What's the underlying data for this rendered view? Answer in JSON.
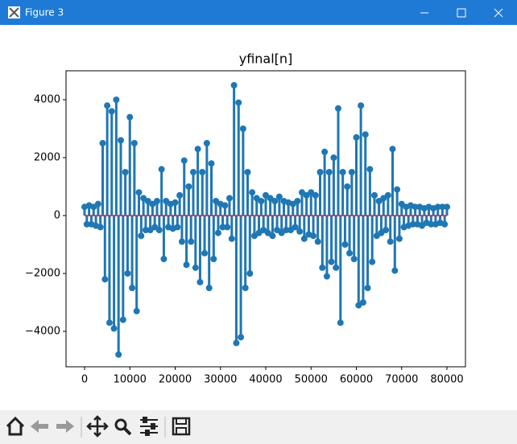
{
  "window": {
    "title": "Figure 3"
  },
  "chart_data": {
    "type": "stem",
    "title": "yfinal[n]",
    "color": "#1f77b4",
    "baseline_color": "#d62728",
    "xlim": [
      -4089,
      84089
    ],
    "ylim": [
      -5222,
      5000
    ],
    "xticks": [
      0,
      10000,
      20000,
      30000,
      40000,
      50000,
      60000,
      70000,
      80000
    ],
    "yticks": [
      {
        "value": -4000,
        "label": "−4000"
      },
      {
        "value": -2000,
        "label": "−2000"
      },
      0,
      2000,
      4000
    ],
    "x": [
      0,
      500,
      1000,
      1500,
      2000,
      2500,
      3000,
      3500,
      4000,
      4500,
      5000,
      5500,
      6000,
      6500,
      7000,
      7500,
      8000,
      8500,
      9000,
      9500,
      10000,
      10500,
      11000,
      11500,
      12000,
      12500,
      13000,
      13500,
      14000,
      14500,
      15000,
      15500,
      16000,
      16500,
      17000,
      17500,
      18000,
      18500,
      19000,
      19500,
      20000,
      20500,
      21000,
      21500,
      22000,
      22500,
      23000,
      23500,
      24000,
      24500,
      25000,
      25500,
      26000,
      26500,
      27000,
      27500,
      28000,
      28500,
      29000,
      29500,
      30000,
      30500,
      31000,
      31500,
      32000,
      32500,
      33000,
      33500,
      34000,
      34500,
      35000,
      35500,
      36000,
      36500,
      37000,
      37500,
      38000,
      38500,
      39000,
      39500,
      40000,
      40500,
      41000,
      41500,
      42000,
      42500,
      43000,
      43500,
      44000,
      44500,
      45000,
      45500,
      46000,
      46500,
      47000,
      47500,
      48000,
      48500,
      49000,
      49500,
      50000,
      50500,
      51000,
      51500,
      52000,
      52500,
      53000,
      53500,
      54000,
      54500,
      55000,
      55500,
      56000,
      56500,
      57000,
      57500,
      58000,
      58500,
      59000,
      59500,
      60000,
      60500,
      61000,
      61500,
      62000,
      62500,
      63000,
      63500,
      64000,
      64500,
      65000,
      65500,
      66000,
      66500,
      67000,
      67500,
      68000,
      68500,
      69000,
      69500,
      70000,
      70500,
      71000,
      71500,
      72000,
      72500,
      73000,
      73500,
      74000,
      74500,
      75000,
      75500,
      76000,
      76500,
      77000,
      77500,
      78000,
      78500,
      79000,
      79500,
      80000
    ],
    "values": [
      300,
      -300,
      350,
      -300,
      300,
      -350,
      400,
      -400,
      2500,
      -2200,
      3800,
      -3700,
      3600,
      -3900,
      4000,
      -4800,
      2600,
      -3600,
      1500,
      -2000,
      3400,
      -2500,
      2500,
      -3300,
      800,
      -700,
      600,
      -500,
      500,
      -500,
      400,
      -400,
      500,
      -500,
      1600,
      -1500,
      500,
      -400,
      400,
      -450,
      450,
      -400,
      700,
      -900,
      1900,
      -1700,
      1000,
      -900,
      1500,
      -1800,
      2300,
      -2300,
      1500,
      -1300,
      2500,
      -2500,
      1800,
      -1500,
      500,
      -600,
      400,
      -400,
      350,
      -400,
      600,
      -800,
      4500,
      -4400,
      3900,
      -4200,
      3000,
      -2500,
      1500,
      -2000,
      800,
      -700,
      600,
      -600,
      500,
      -500,
      700,
      -600,
      600,
      -700,
      500,
      -500,
      650,
      -600,
      500,
      -500,
      450,
      -500,
      400,
      -400,
      500,
      -550,
      800,
      -800,
      700,
      -650,
      800,
      -700,
      700,
      -900,
      1500,
      -1800,
      2200,
      -2100,
      1500,
      -1600,
      2000,
      -1800,
      3700,
      -3700,
      1500,
      -1000,
      1000,
      -1300,
      1500,
      -1500,
      2700,
      -3100,
      3800,
      -3000,
      2800,
      -2500,
      1600,
      -1600,
      700,
      -700,
      500,
      -600,
      600,
      -500,
      700,
      -900,
      2300,
      -1900,
      900,
      -800,
      400,
      -400,
      300,
      -350,
      350,
      -300,
      300,
      -300,
      300,
      -350,
      250,
      -250,
      300,
      -300,
      250,
      -300,
      300,
      -250,
      300,
      -300,
      300
    ]
  }
}
